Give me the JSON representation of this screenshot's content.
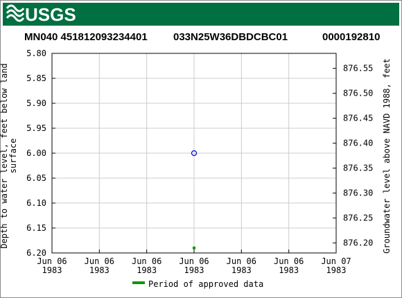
{
  "logo": "USGS",
  "chart_data": {
    "type": "scatter",
    "title_parts": [
      "MN040 451812093234401",
      "033N25W36DBDCBC01",
      "0000192810"
    ],
    "ylabel": "Depth to water level, feet below land surface",
    "y2label": "Groundwater level above NAVD 1988, feet",
    "xlim": [
      0,
      24
    ],
    "xticks": [
      {
        "value": 0,
        "label": [
          "Jun 06",
          "1983"
        ]
      },
      {
        "value": 4,
        "label": [
          "Jun 06",
          "1983"
        ]
      },
      {
        "value": 8,
        "label": [
          "Jun 06",
          "1983"
        ]
      },
      {
        "value": 12,
        "label": [
          "Jun 06",
          "1983"
        ]
      },
      {
        "value": 16,
        "label": [
          "Jun 06",
          "1983"
        ]
      },
      {
        "value": 20,
        "label": [
          "Jun 06",
          "1983"
        ]
      },
      {
        "value": 24,
        "label": [
          "Jun 07",
          "1983"
        ]
      }
    ],
    "ylim": [
      5.8,
      6.2
    ],
    "yticks": [
      {
        "value": 5.8,
        "label": "5.80"
      },
      5.85,
      {
        "value": 5.9,
        "label": "5.90"
      },
      5.95,
      {
        "value": 6.0,
        "label": "6.00"
      },
      6.05,
      {
        "value": 6.1,
        "label": "6.10"
      },
      6.15,
      {
        "value": 6.2,
        "label": "6.20"
      }
    ],
    "y2lim": [
      876.58,
      876.18
    ],
    "y2ticks": [
      876.55,
      {
        "value": 876.5,
        "label": "876.50"
      },
      876.45,
      {
        "value": 876.4,
        "label": "876.40"
      },
      876.35,
      {
        "value": 876.3,
        "label": "876.30"
      },
      876.25,
      {
        "value": 876.2,
        "label": "876.20"
      }
    ],
    "grid": true,
    "series": [
      {
        "marker": "circle",
        "color": "#0000cc",
        "x": [
          12
        ],
        "values": [
          6.0
        ]
      },
      {
        "name": "Period of approved data",
        "marker": "square",
        "color": "#009900",
        "x": [
          12
        ],
        "values": [
          6.19
        ]
      }
    ]
  }
}
